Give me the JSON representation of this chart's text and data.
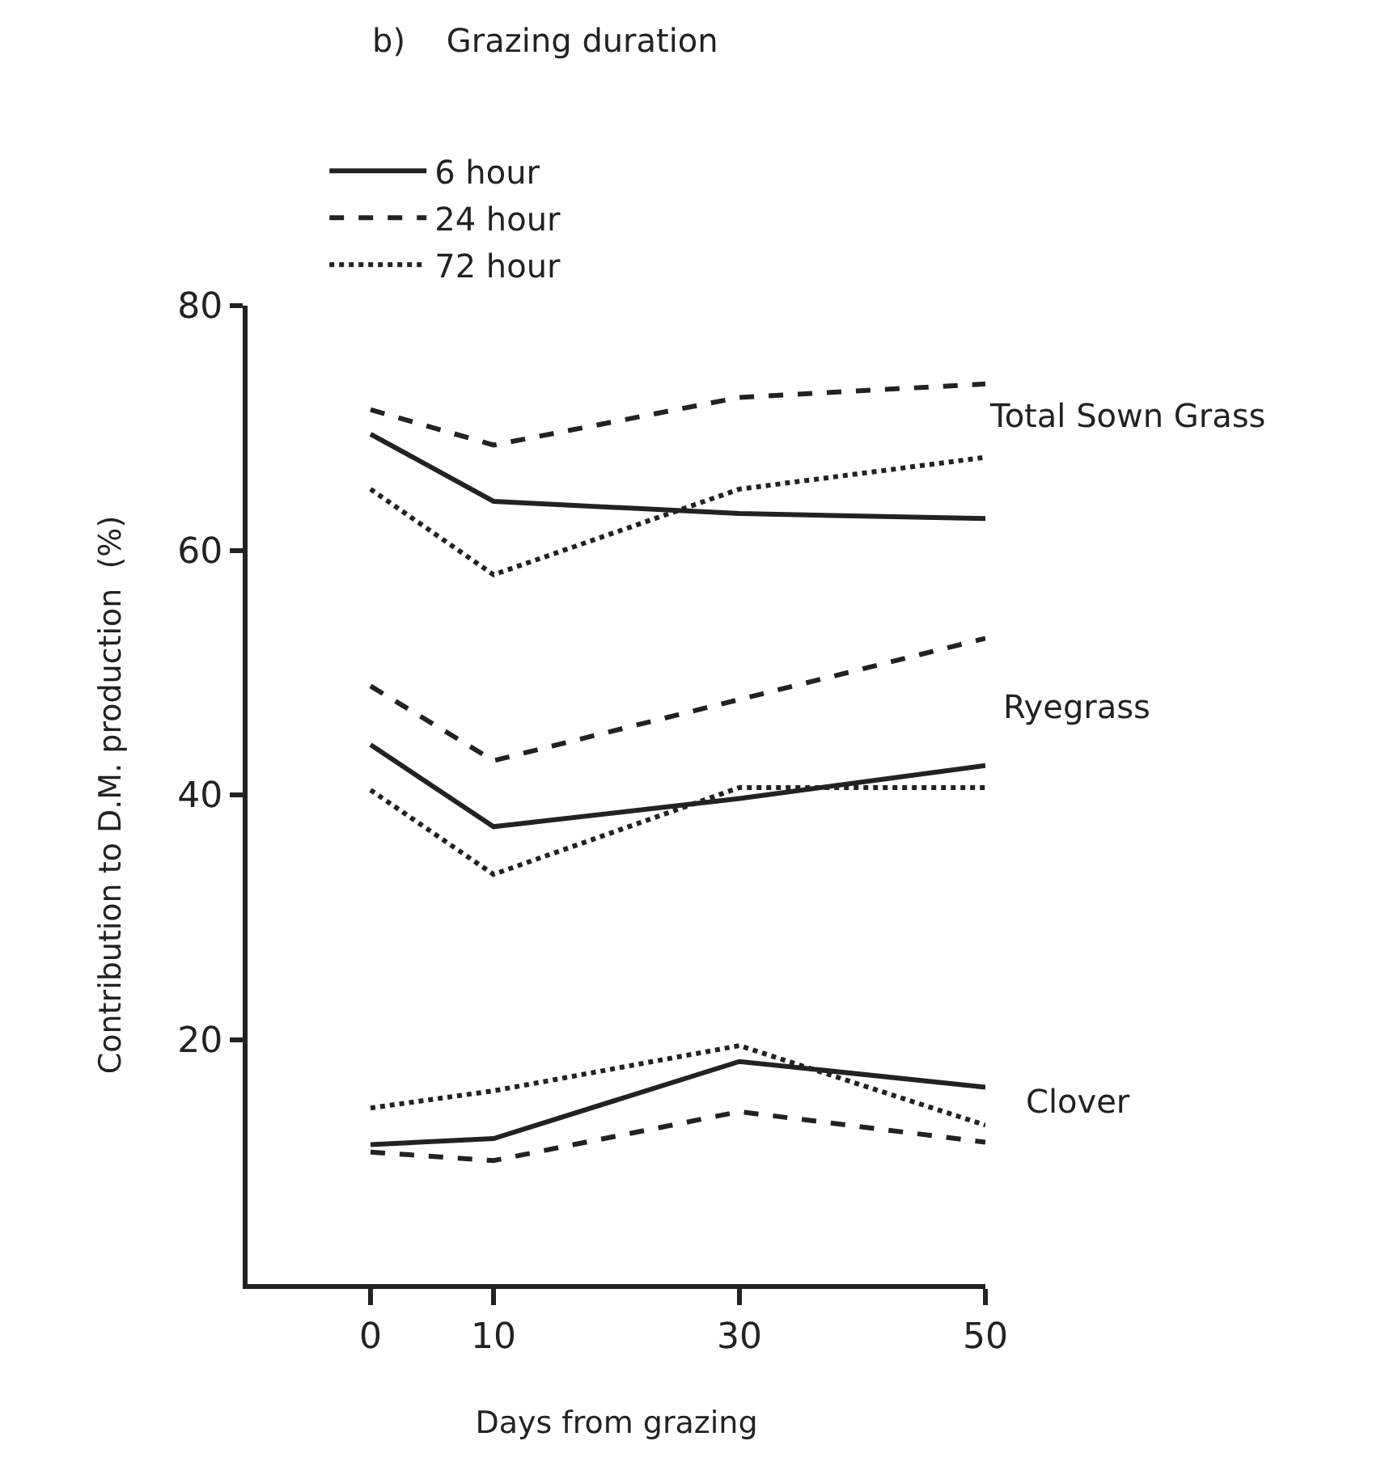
{
  "chart_data": {
    "type": "line",
    "title": "b)    Grazing duration",
    "xlabel": "Days from grazing",
    "ylabel": "Contribution to D.M. production  (%)",
    "x": [
      0,
      10,
      30,
      50
    ],
    "series": [
      {
        "name": "6 hour",
        "color": "#222222",
        "line_style": "solid",
        "values": [
          69.5,
          64.0,
          63.0,
          62.6
        ]
      },
      {
        "name": "24 hour",
        "color": "#222222",
        "line_style": "dashed",
        "values": [
          71.5,
          68.6,
          72.5,
          73.6
        ]
      },
      {
        "name": "72 hour",
        "color": "#222222",
        "line_style": "dotted",
        "values": [
          65.0,
          58.0,
          65.0,
          67.6
        ]
      },
      {
        "color": "#222222",
        "line_style": "solid",
        "values": [
          44.1,
          37.4,
          39.7,
          42.4
        ]
      },
      {
        "color": "#222222",
        "line_style": "dashed",
        "values": [
          48.9,
          42.8,
          47.8,
          52.8
        ]
      },
      {
        "color": "#222222",
        "line_style": "dotted",
        "values": [
          40.4,
          33.5,
          40.6,
          40.6
        ]
      },
      {
        "color": "#222222",
        "line_style": "solid",
        "values": [
          11.4,
          11.9,
          18.2,
          16.1
        ]
      },
      {
        "color": "#222222",
        "line_style": "dashed",
        "values": [
          10.8,
          10.1,
          14.1,
          11.6
        ]
      },
      {
        "color": "#222222",
        "line_style": "dotted",
        "values": [
          14.4,
          15.8,
          19.5,
          13.0
        ]
      }
    ],
    "annotations": [
      "Total Sown Grass",
      "Ryegrass",
      "Clover"
    ],
    "xlim": [
      -10,
      50
    ],
    "xticks": [
      0,
      10,
      30,
      50
    ],
    "ylim": [
      0,
      80
    ],
    "yticks": [
      20,
      40,
      60,
      80
    ],
    "legend": "top left",
    "marker": "none"
  }
}
